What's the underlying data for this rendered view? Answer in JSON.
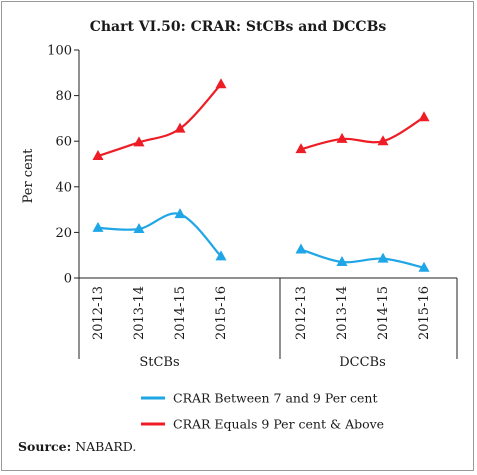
{
  "chart_data": {
    "type": "line",
    "title": "Chart VI.50: CRAR: StCBs and DCCBs",
    "ylabel": "Per cent",
    "ylim": [
      0,
      100
    ],
    "yticks": [
      "0",
      "20",
      "40",
      "60",
      "80",
      "100"
    ],
    "groups": [
      {
        "name": "StCBs",
        "categories": [
          "2012-13",
          "2013-14",
          "2014-15",
          "2015-16"
        ]
      },
      {
        "name": "DCCBs",
        "categories": [
          "2012-13",
          "2013-14",
          "2014-15",
          "2015-16"
        ]
      }
    ],
    "series": [
      {
        "name": "CRAR Between 7 and 9 Per cent",
        "color": "#1ea6e6",
        "marker": "triangle",
        "values": [
          [
            22,
            21.5,
            28,
            9.5
          ],
          [
            12.5,
            7,
            8.5,
            4.5
          ]
        ]
      },
      {
        "name": "CRAR Equals 9 Per cent & Above",
        "color": "#ee1c25",
        "marker": "triangle",
        "values": [
          [
            53.5,
            59.5,
            65.5,
            85
          ],
          [
            56.5,
            61,
            60,
            70.5
          ]
        ]
      }
    ],
    "legend_position": "bottom",
    "grid": false
  },
  "source": {
    "label": "Source:",
    "text": " NABARD."
  }
}
